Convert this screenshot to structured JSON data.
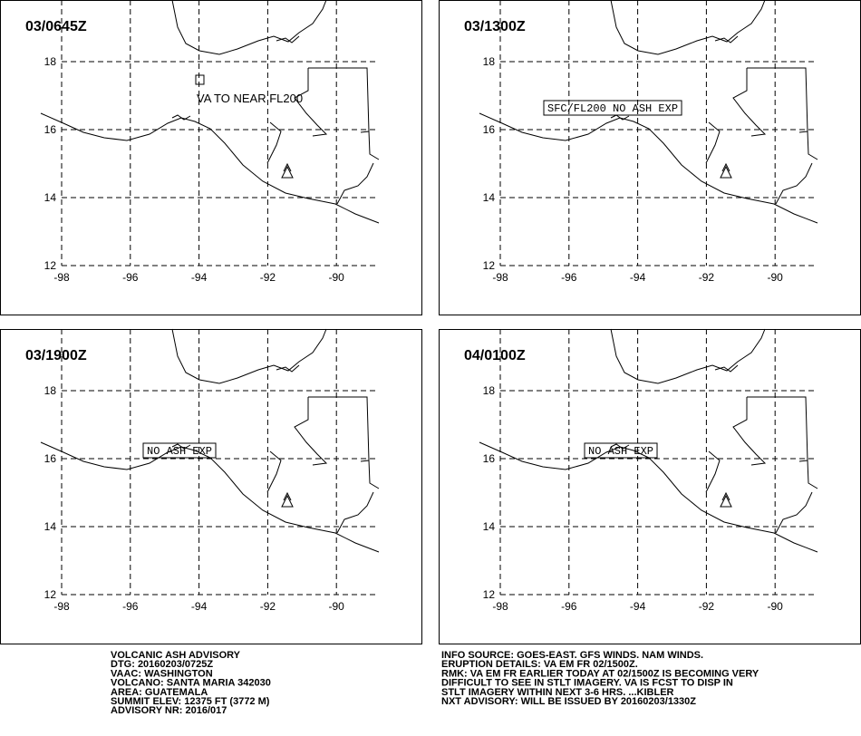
{
  "panels": [
    {
      "time": "03/0645Z",
      "label": "VA TO NEAR FL200"
    },
    {
      "time": "03/1300Z",
      "label": "SFC/FL200 NO ASH EXP"
    },
    {
      "time": "03/1900Z",
      "label": "NO ASH EXP"
    },
    {
      "time": "04/0100Z",
      "label": "NO ASH EXP"
    }
  ],
  "lat_ticks": [
    18,
    16,
    14,
    12
  ],
  "lon_ticks": [
    -98,
    -96,
    -94,
    -92,
    -90
  ],
  "advisory": {
    "lines": [
      "VOLCANIC ASH ADVISORY",
      "DTG: 20160203/0725Z",
      "VAAC: WASHINGTON",
      "VOLCANO: SANTA MARIA 342030",
      "AREA: GUATEMALA",
      "SUMMIT ELEV: 12375 FT (3772 M)",
      "ADVISORY NR: 2016/017"
    ]
  },
  "info": {
    "lines": [
      "INFO SOURCE: GOES-EAST. GFS WINDS. NAM WINDS.",
      "ERUPTION DETAILS: VA EM FR 02/1500Z.",
      "RMK: VA EM FR EARLIER TODAY AT 02/1500Z IS BECOMING VERY",
      "DIFFICULT TO SEE IN STLT IMAGERY. VA IS FCST TO DISP IN",
      "STLT IMAGERY WITHIN NEXT 3-6 HRS. ...KIBLER",
      "NXT ADVISORY: WILL BE ISSUED BY 20160203/1330Z"
    ]
  }
}
